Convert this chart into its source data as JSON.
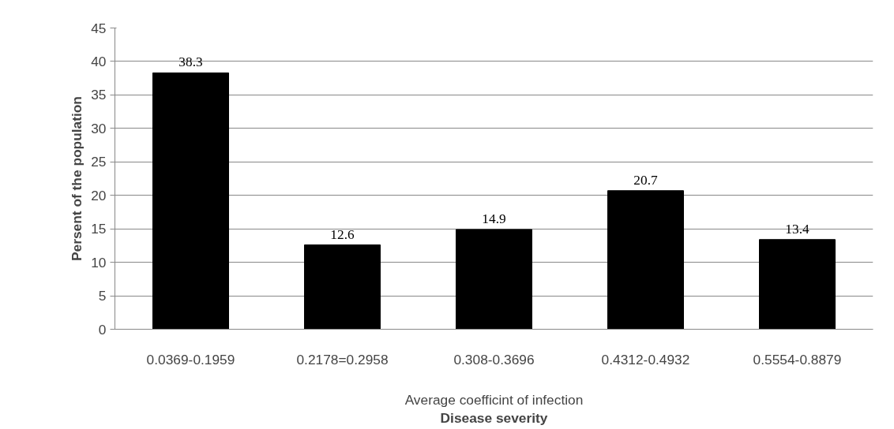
{
  "chart_data": {
    "type": "bar",
    "ylabel": "Persent of the population",
    "xlabel": "Disease severity",
    "annotations": [
      "Average coefficint of infection"
    ],
    "categories": [
      "0.0369-0.1959",
      "0.2178=0.2958",
      "0.308-0.3696",
      "0.4312-0.4932",
      "0.5554-0.8879"
    ],
    "values": [
      38.3,
      12.6,
      14.9,
      20.7,
      13.4
    ],
    "color": "#000000",
    "ylim": [
      0,
      45
    ],
    "yticks": [
      0,
      5,
      10,
      15,
      20,
      25,
      30,
      35,
      40,
      45
    ],
    "grid": "y",
    "data_labels": true
  }
}
